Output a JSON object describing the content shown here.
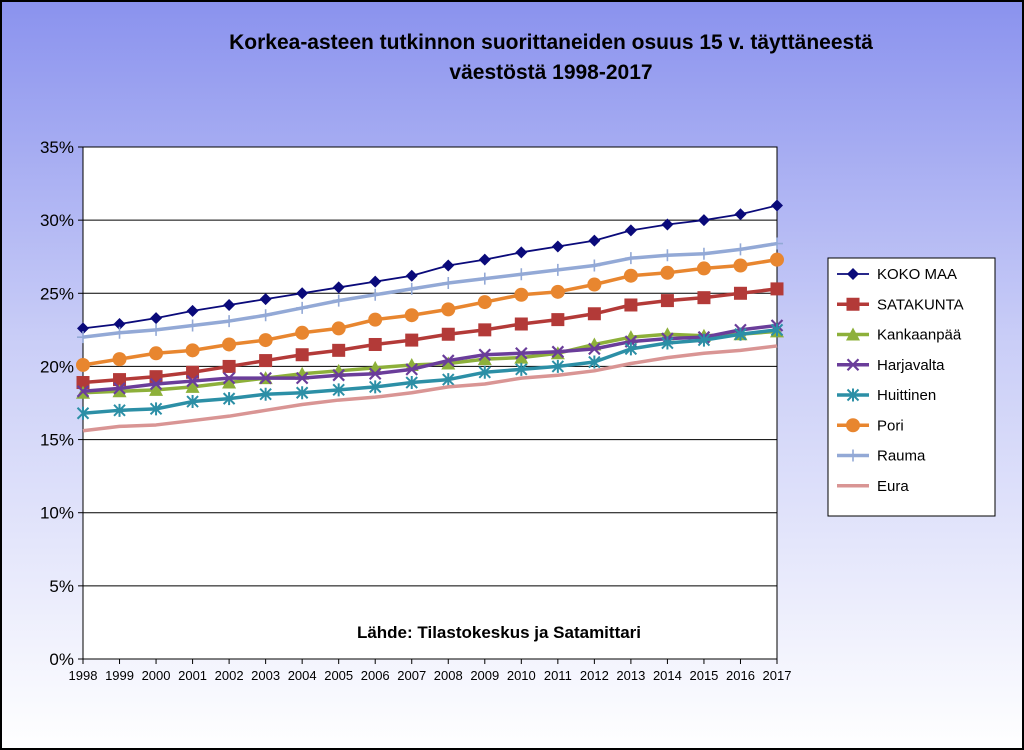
{
  "chart_data": {
    "type": "line",
    "title_lines": [
      "Korkea-asteen tutkinnon suorittaneiden osuus 15 v. täyttäneestä",
      "väestöstä 1998-2017"
    ],
    "xlabel": "",
    "ylabel": "",
    "categories": [
      "1998",
      "1999",
      "2000",
      "2001",
      "2002",
      "2003",
      "2004",
      "2005",
      "2006",
      "2007",
      "2008",
      "2009",
      "2010",
      "2011",
      "2012",
      "2013",
      "2014",
      "2015",
      "2016",
      "2017"
    ],
    "y_ticks": [
      "0%",
      "5%",
      "10%",
      "15%",
      "20%",
      "25%",
      "30%",
      "35%"
    ],
    "ylim": [
      0,
      35
    ],
    "grid": true,
    "legend_position": "right",
    "annotation": "Lähde: Tilastokeskus ja Satamittari",
    "series": [
      {
        "name": "KOKO MAA",
        "color": "#0A0A7A",
        "marker": "diamond",
        "values": [
          22.6,
          22.9,
          23.3,
          23.8,
          24.2,
          24.6,
          25.0,
          25.4,
          25.8,
          26.2,
          26.9,
          27.3,
          27.8,
          28.2,
          28.6,
          29.3,
          29.7,
          30.0,
          30.4,
          31.0
        ]
      },
      {
        "name": "SATAKUNTA",
        "color": "#B33A38",
        "marker": "square",
        "values": [
          18.9,
          19.1,
          19.3,
          19.6,
          20.0,
          20.4,
          20.8,
          21.1,
          21.5,
          21.8,
          22.2,
          22.5,
          22.9,
          23.2,
          23.6,
          24.2,
          24.5,
          24.7,
          25.0,
          25.3
        ]
      },
      {
        "name": "Kankaanpää",
        "color": "#8DB03A",
        "marker": "triangle",
        "values": [
          18.2,
          18.3,
          18.4,
          18.6,
          18.9,
          19.2,
          19.5,
          19.7,
          19.9,
          20.1,
          20.2,
          20.5,
          20.6,
          20.9,
          21.5,
          22.0,
          22.2,
          22.1,
          22.2,
          22.4
        ]
      },
      {
        "name": "Harjavalta",
        "color": "#6A3D9A",
        "marker": "x",
        "values": [
          18.3,
          18.5,
          18.8,
          19.0,
          19.2,
          19.2,
          19.2,
          19.4,
          19.5,
          19.8,
          20.4,
          20.8,
          20.9,
          21.0,
          21.2,
          21.7,
          21.9,
          22.0,
          22.5,
          22.8
        ]
      },
      {
        "name": "Huittinen",
        "color": "#2C8FA6",
        "marker": "asterisk",
        "values": [
          16.8,
          17.0,
          17.1,
          17.6,
          17.8,
          18.1,
          18.2,
          18.4,
          18.6,
          18.9,
          19.1,
          19.6,
          19.8,
          20.0,
          20.3,
          21.2,
          21.6,
          21.8,
          22.2,
          22.5
        ]
      },
      {
        "name": "Pori",
        "color": "#E8862F",
        "marker": "circle",
        "values": [
          20.1,
          20.5,
          20.9,
          21.1,
          21.5,
          21.8,
          22.3,
          22.6,
          23.2,
          23.5,
          23.9,
          24.4,
          24.9,
          25.1,
          25.6,
          26.2,
          26.4,
          26.7,
          26.9,
          27.3
        ]
      },
      {
        "name": "Rauma",
        "color": "#93A9D6",
        "marker": "plus",
        "values": [
          22.0,
          22.3,
          22.5,
          22.8,
          23.1,
          23.5,
          24.0,
          24.5,
          24.9,
          25.3,
          25.7,
          26.0,
          26.3,
          26.6,
          26.9,
          27.4,
          27.6,
          27.7,
          28.0,
          28.4
        ]
      },
      {
        "name": "Eura",
        "color": "#D99594",
        "marker": "none",
        "values": [
          15.6,
          15.9,
          16.0,
          16.3,
          16.6,
          17.0,
          17.4,
          17.7,
          17.9,
          18.2,
          18.6,
          18.8,
          19.2,
          19.4,
          19.7,
          20.2,
          20.6,
          20.9,
          21.1,
          21.4
        ]
      }
    ]
  }
}
